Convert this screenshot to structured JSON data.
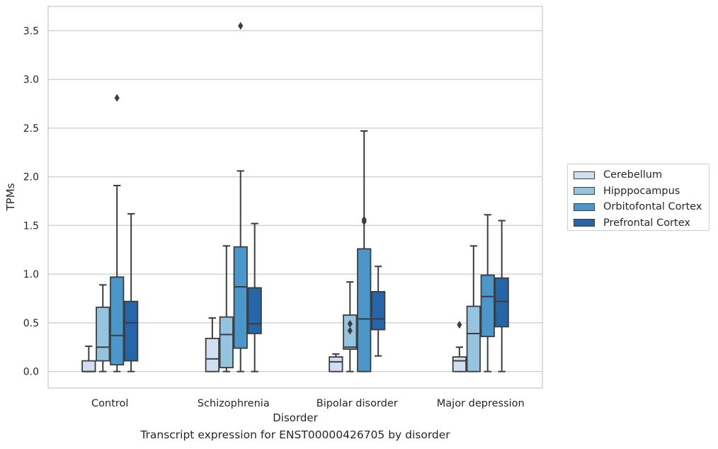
{
  "caption": "Transcript expression for ENST00000426705 by disorder",
  "chart_data": {
    "type": "boxplot",
    "xlabel": "Disorder",
    "ylabel": "TPMs",
    "ylim": [
      -0.17,
      3.75
    ],
    "yticks": [
      0.0,
      0.5,
      1.0,
      1.5,
      2.0,
      2.5,
      3.0,
      3.5
    ],
    "ytick_labels": [
      "0.0",
      "0.5",
      "1.0",
      "1.5",
      "2.0",
      "2.5",
      "3.0",
      "3.5"
    ],
    "grid": "horizontal",
    "legend_position": "right",
    "categories": [
      "Control",
      "Schizophrenia",
      "Bipolar disorder",
      "Major depression"
    ],
    "series": [
      {
        "name": "Cerebellum",
        "color": "#d0e0f2",
        "boxes": [
          {
            "whislo": 0.0,
            "q1": 0.0,
            "med": 0.0,
            "q3": 0.11,
            "whishi": 0.26,
            "fliers": []
          },
          {
            "whislo": 0.0,
            "q1": 0.0,
            "med": 0.13,
            "q3": 0.34,
            "whishi": 0.55,
            "fliers": []
          },
          {
            "whislo": 0.0,
            "q1": 0.0,
            "med": 0.1,
            "q3": 0.15,
            "whishi": 0.18,
            "fliers": []
          },
          {
            "whislo": 0.0,
            "q1": 0.0,
            "med": 0.11,
            "q3": 0.15,
            "whishi": 0.25,
            "fliers": [
              0.48
            ]
          }
        ]
      },
      {
        "name": "Hipppocampus",
        "color": "#94c4df",
        "boxes": [
          {
            "whislo": 0.0,
            "q1": 0.11,
            "med": 0.25,
            "q3": 0.66,
            "whishi": 0.89,
            "fliers": []
          },
          {
            "whislo": 0.0,
            "q1": 0.04,
            "med": 0.38,
            "q3": 0.56,
            "whishi": 1.29,
            "fliers": []
          },
          {
            "whislo": 0.0,
            "q1": 0.23,
            "med": 0.25,
            "q3": 0.58,
            "whishi": 0.92,
            "fliers": [
              0.42,
              0.49
            ]
          },
          {
            "whislo": 0.0,
            "q1": 0.0,
            "med": 0.39,
            "q3": 0.67,
            "whishi": 1.29,
            "fliers": []
          }
        ]
      },
      {
        "name": "Orbitofontal Cortex",
        "color": "#4b97c9",
        "boxes": [
          {
            "whislo": 0.0,
            "q1": 0.07,
            "med": 0.37,
            "q3": 0.97,
            "whishi": 1.91,
            "fliers": [
              2.81
            ]
          },
          {
            "whislo": 0.0,
            "q1": 0.24,
            "med": 0.87,
            "q3": 1.28,
            "whishi": 2.06,
            "fliers": [
              3.55
            ]
          },
          {
            "whislo": 0.0,
            "q1": 0.0,
            "med": 0.54,
            "q3": 1.26,
            "whishi": 2.47,
            "fliers": [
              1.54,
              1.56
            ]
          },
          {
            "whislo": 0.0,
            "q1": 0.36,
            "med": 0.77,
            "q3": 0.99,
            "whishi": 1.61,
            "fliers": []
          }
        ]
      },
      {
        "name": "Prefrontal Cortex",
        "color": "#2565a8",
        "boxes": [
          {
            "whislo": 0.0,
            "q1": 0.11,
            "med": 0.5,
            "q3": 0.72,
            "whishi": 1.62,
            "fliers": []
          },
          {
            "whislo": 0.0,
            "q1": 0.39,
            "med": 0.49,
            "q3": 0.86,
            "whishi": 1.52,
            "fliers": []
          },
          {
            "whislo": 0.16,
            "q1": 0.43,
            "med": 0.54,
            "q3": 0.82,
            "whishi": 1.08,
            "fliers": []
          },
          {
            "whislo": 0.0,
            "q1": 0.46,
            "med": 0.72,
            "q3": 0.96,
            "whishi": 1.55,
            "fliers": []
          }
        ]
      }
    ]
  }
}
